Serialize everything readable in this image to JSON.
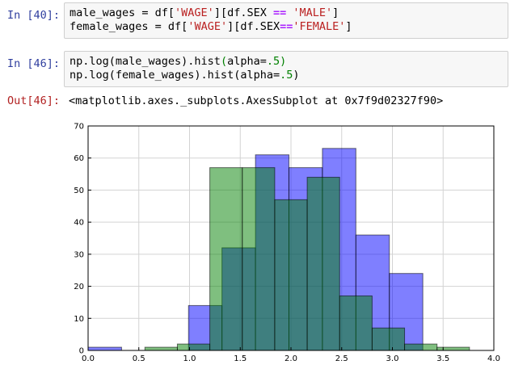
{
  "cells": [
    {
      "prompt": "In [40]:",
      "lines": [
        [
          {
            "t": "male_wages = df[",
            "c": ""
          },
          {
            "t": "'WAGE'",
            "c": "str"
          },
          {
            "t": "][df.SEX ",
            "c": ""
          },
          {
            "t": "==",
            "c": "op"
          },
          {
            "t": " ",
            "c": ""
          },
          {
            "t": "'MALE'",
            "c": "str"
          },
          {
            "t": "]",
            "c": ""
          }
        ],
        [
          {
            "t": "female_wages = df[",
            "c": ""
          },
          {
            "t": "'WAGE'",
            "c": "str"
          },
          {
            "t": "][df.SEX",
            "c": ""
          },
          {
            "t": "==",
            "c": "op"
          },
          {
            "t": "'FEMALE'",
            "c": "str"
          },
          {
            "t": "]",
            "c": ""
          }
        ]
      ]
    },
    {
      "prompt": "In [46]:",
      "lines": [
        [
          {
            "t": "np.log(male_wages).hist",
            "c": ""
          },
          {
            "t": "(",
            "c": "paren"
          },
          {
            "t": "alpha=",
            "c": ""
          },
          {
            "t": ".5",
            "c": "num"
          },
          {
            "t": ")",
            "c": "paren"
          }
        ],
        [
          {
            "t": "np.log(female_wages).hist(alpha=",
            "c": ""
          },
          {
            "t": ".5",
            "c": "num"
          },
          {
            "t": ")",
            "c": ""
          }
        ]
      ]
    }
  ],
  "output": {
    "prompt": "Out[46]:",
    "text": "<matplotlib.axes._subplots.AxesSubplot at 0x7f9d02327f90>"
  },
  "chart_data": {
    "type": "bar",
    "xlim": [
      0.0,
      4.0
    ],
    "ylim": [
      0,
      70
    ],
    "x_ticks": [
      "0.0",
      "0.5",
      "1.0",
      "1.5",
      "2.0",
      "2.5",
      "3.0",
      "3.5",
      "4.0"
    ],
    "y_ticks": [
      "0",
      "10",
      "20",
      "30",
      "40",
      "50",
      "60",
      "70"
    ],
    "grid": true,
    "series": [
      {
        "color": "#0000ff",
        "bins": [
          {
            "x0": 0.0,
            "x1": 0.33,
            "count": 1
          },
          {
            "x0": 0.33,
            "x1": 0.66,
            "count": 0
          },
          {
            "x0": 0.66,
            "x1": 0.99,
            "count": 0
          },
          {
            "x0": 0.99,
            "x1": 1.32,
            "count": 14
          },
          {
            "x0": 1.32,
            "x1": 1.65,
            "count": 32
          },
          {
            "x0": 1.65,
            "x1": 1.98,
            "count": 61
          },
          {
            "x0": 1.98,
            "x1": 2.31,
            "count": 57
          },
          {
            "x0": 2.31,
            "x1": 2.64,
            "count": 63
          },
          {
            "x0": 2.64,
            "x1": 2.97,
            "count": 36
          },
          {
            "x0": 2.97,
            "x1": 3.3,
            "count": 24
          }
        ]
      },
      {
        "color": "#008000",
        "bins": [
          {
            "x0": 0.56,
            "x1": 0.88,
            "count": 1
          },
          {
            "x0": 0.88,
            "x1": 1.2,
            "count": 2
          },
          {
            "x0": 1.2,
            "x1": 1.52,
            "count": 57
          },
          {
            "x0": 1.52,
            "x1": 1.84,
            "count": 57
          },
          {
            "x0": 1.84,
            "x1": 2.16,
            "count": 47
          },
          {
            "x0": 2.16,
            "x1": 2.48,
            "count": 54
          },
          {
            "x0": 2.48,
            "x1": 2.8,
            "count": 17
          },
          {
            "x0": 2.8,
            "x1": 3.12,
            "count": 7
          },
          {
            "x0": 3.12,
            "x1": 3.44,
            "count": 2
          },
          {
            "x0": 3.44,
            "x1": 3.76,
            "count": 1
          }
        ]
      }
    ]
  }
}
